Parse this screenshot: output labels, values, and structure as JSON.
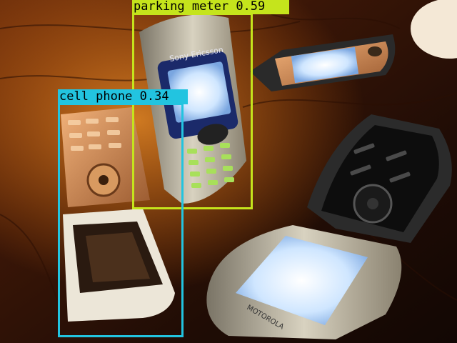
{
  "detections": [
    {
      "label": "parking meter",
      "score": "0.59",
      "color": "#c5e41c"
    },
    {
      "label": "cell phone",
      "score": "0.34",
      "color": "#22c4e0"
    }
  ],
  "photo_brand_text": {
    "sony_ericsson": "Sony Ericsson",
    "motorola": "MOTOROLA"
  }
}
